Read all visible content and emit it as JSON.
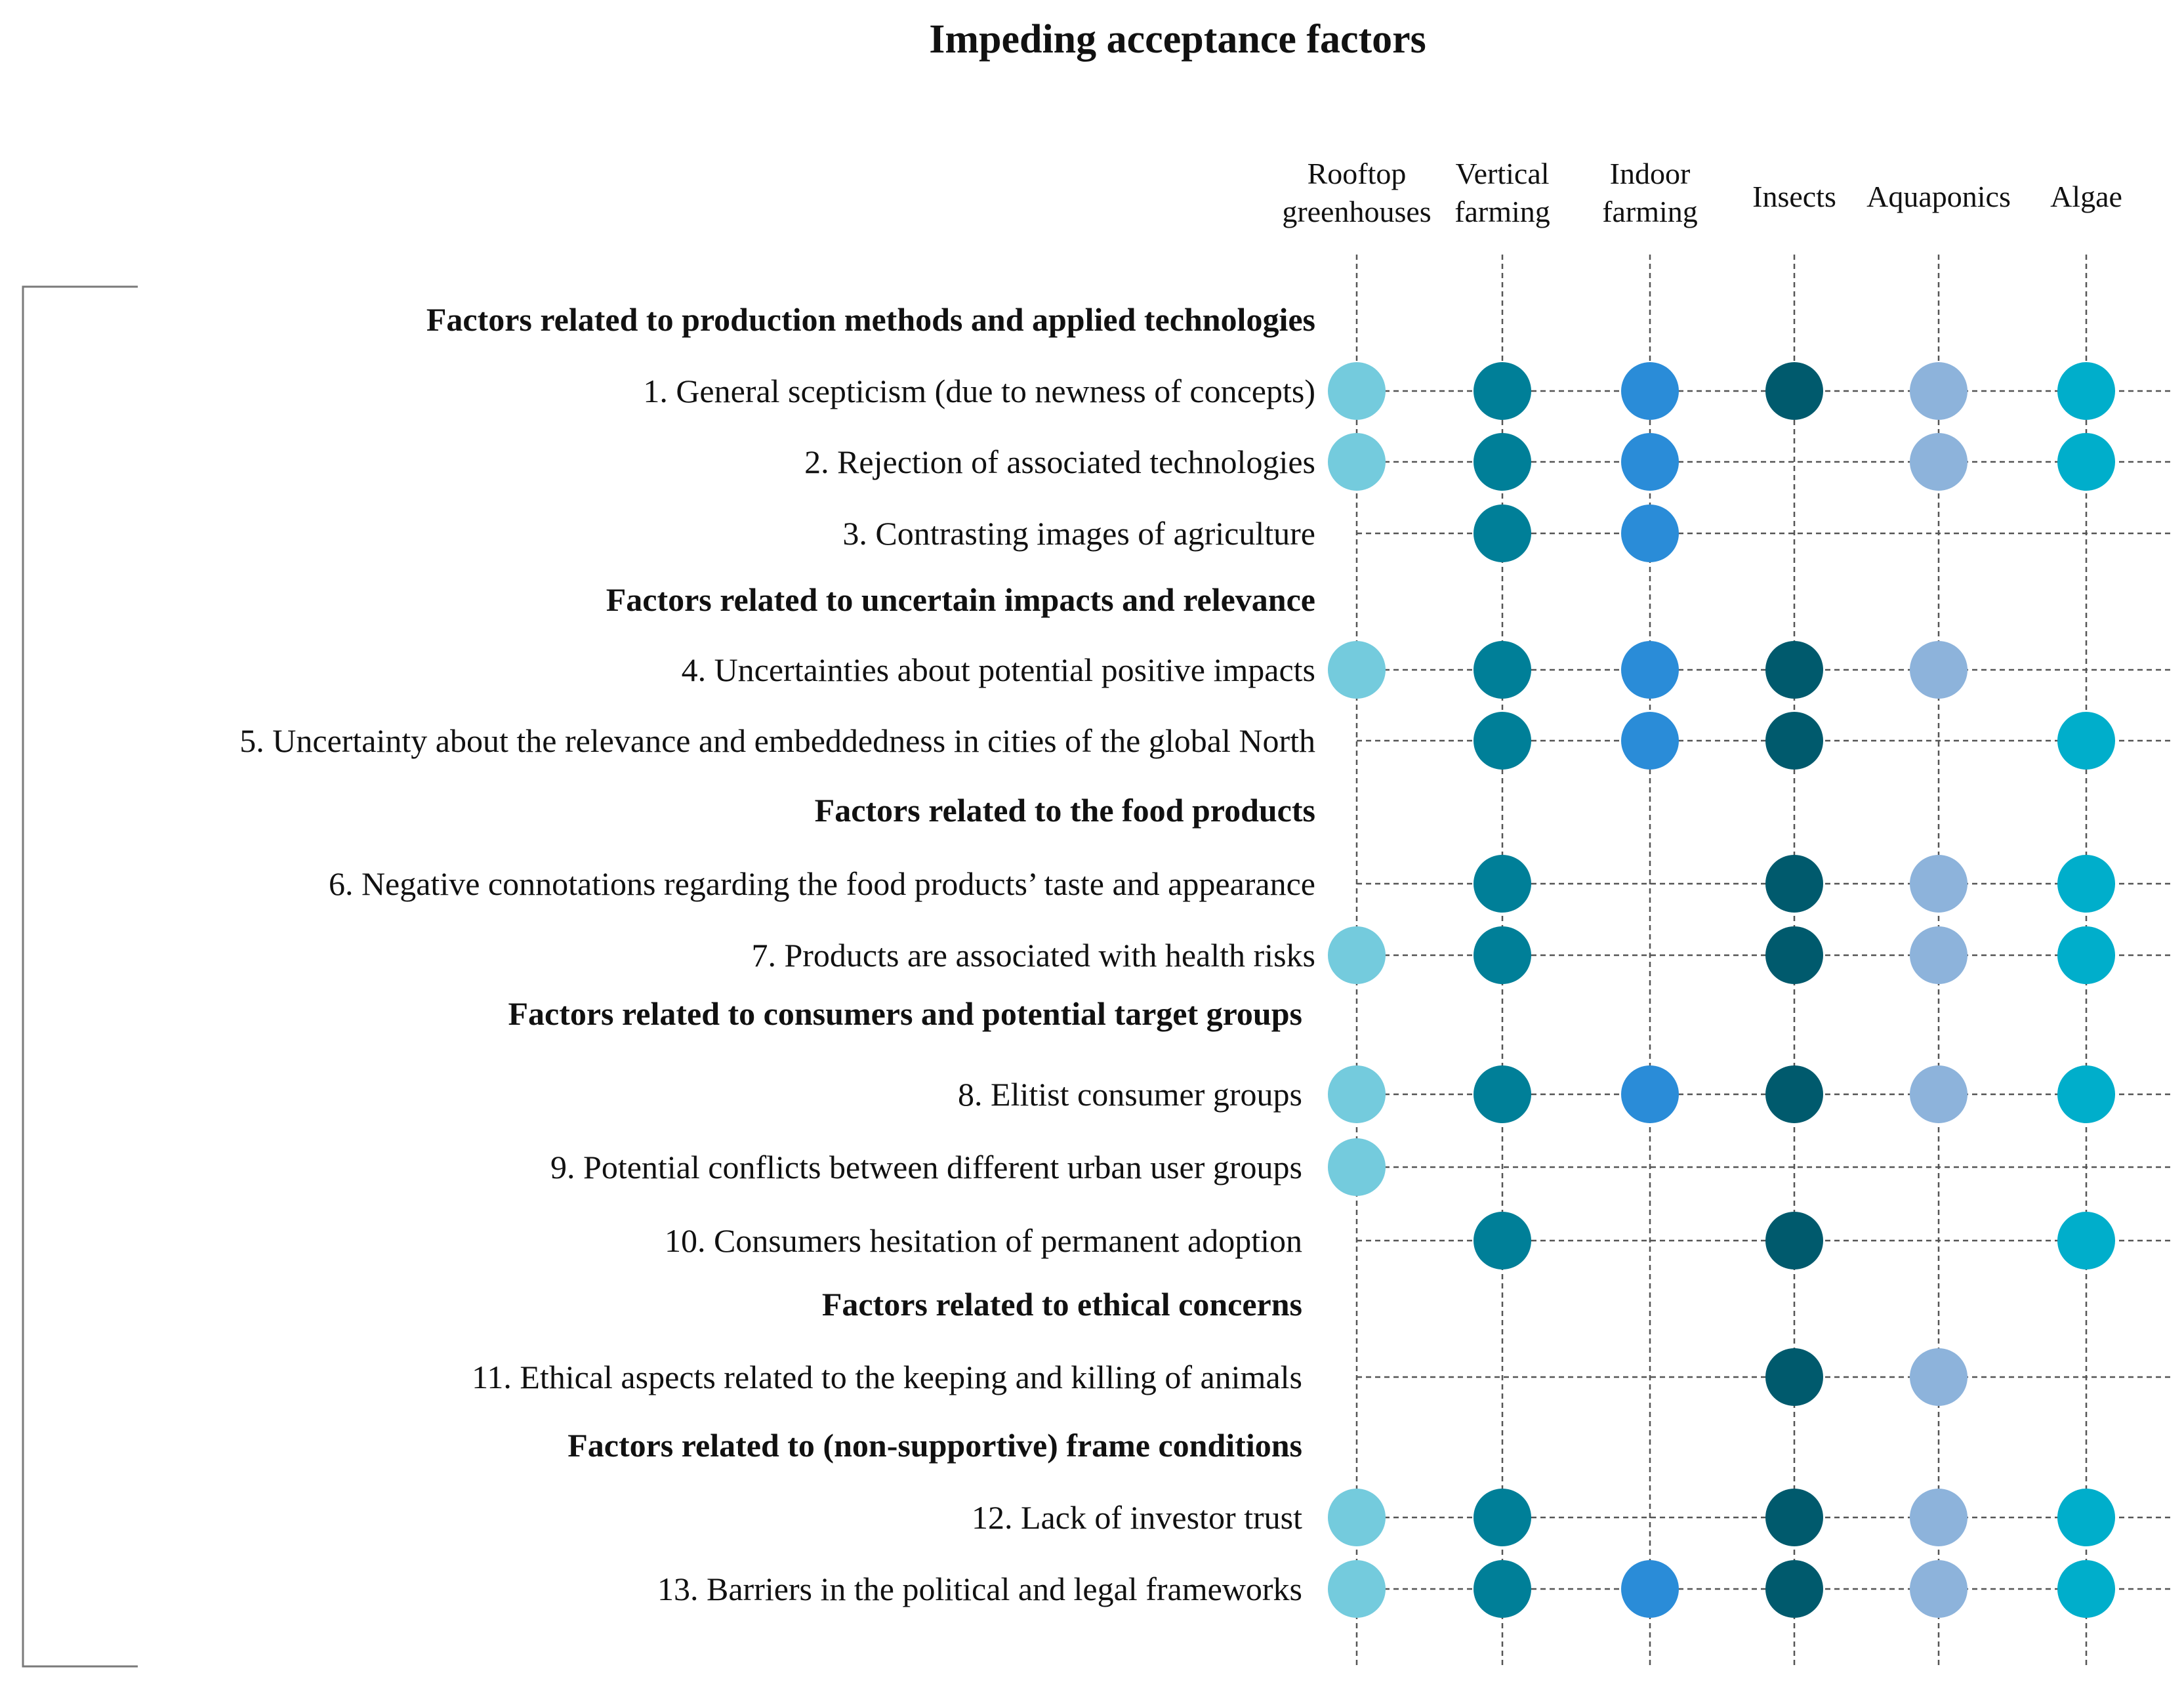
{
  "title": "Impeding acceptance factors",
  "columns": [
    {
      "line1": "Rooftop",
      "line2": "greenhouses",
      "color": "#74CBDD"
    },
    {
      "line1": "Vertical",
      "line2": "farming",
      "color": "#007F98"
    },
    {
      "line1": "Indoor",
      "line2": "farming",
      "color": "#2A8CD8"
    },
    {
      "line1": "Insects",
      "line2": "",
      "color": "#005A6D"
    },
    {
      "line1": "Aquaponics",
      "line2": "",
      "color": "#8DB3DB"
    },
    {
      "line1": "Algae",
      "line2": "",
      "color": "#00AECB"
    }
  ],
  "groups": [
    {
      "label": "Factors related to production methods and applied technologies",
      "factors": [
        {
          "label": "1. General scepticism (due to newness of concepts)",
          "marks": [
            1,
            1,
            1,
            1,
            1,
            1
          ]
        },
        {
          "label": "2. Rejection of associated technologies",
          "marks": [
            1,
            1,
            1,
            0,
            1,
            1
          ]
        },
        {
          "label": "3. Contrasting images of agriculture",
          "marks": [
            0,
            1,
            1,
            0,
            0,
            0
          ]
        }
      ]
    },
    {
      "label": "Factors related to uncertain impacts and relevance",
      "factors": [
        {
          "label": "4. Uncertainties about potential positive impacts",
          "marks": [
            1,
            1,
            1,
            1,
            1,
            0
          ]
        },
        {
          "label": "5. Uncertainty about the relevance and embeddedness in cities of the global North",
          "marks": [
            0,
            1,
            1,
            1,
            0,
            1
          ]
        }
      ]
    },
    {
      "label": "Factors related to the food products",
      "factors": [
        {
          "label": "6. Negative connotations regarding the food products’ taste and appearance",
          "marks": [
            0,
            1,
            0,
            1,
            1,
            1
          ]
        },
        {
          "label": "7. Products are associated with health risks",
          "marks": [
            1,
            1,
            0,
            1,
            1,
            1
          ]
        }
      ]
    },
    {
      "label": "Factors related to consumers and potential target groups",
      "factors": [
        {
          "label": "8. Elitist consumer groups",
          "marks": [
            1,
            1,
            1,
            1,
            1,
            1
          ]
        },
        {
          "label": "9. Potential conflicts between different urban user groups",
          "marks": [
            1,
            0,
            0,
            0,
            0,
            0
          ]
        },
        {
          "label": "10. Consumers hesitation of permanent adoption",
          "marks": [
            0,
            1,
            0,
            1,
            0,
            1
          ]
        }
      ]
    },
    {
      "label": "Factors related to ethical concerns",
      "factors": [
        {
          "label": "11. Ethical aspects related to the keeping and killing of animals",
          "marks": [
            0,
            0,
            0,
            1,
            1,
            0
          ]
        }
      ]
    },
    {
      "label": "Factors related to (non-supportive) frame conditions",
      "factors": [
        {
          "label": "12. Lack of investor trust",
          "marks": [
            1,
            1,
            0,
            1,
            1,
            1
          ]
        },
        {
          "label": "13. Barriers in the political and legal frameworks",
          "marks": [
            1,
            1,
            1,
            1,
            1,
            1
          ]
        }
      ]
    }
  ]
}
